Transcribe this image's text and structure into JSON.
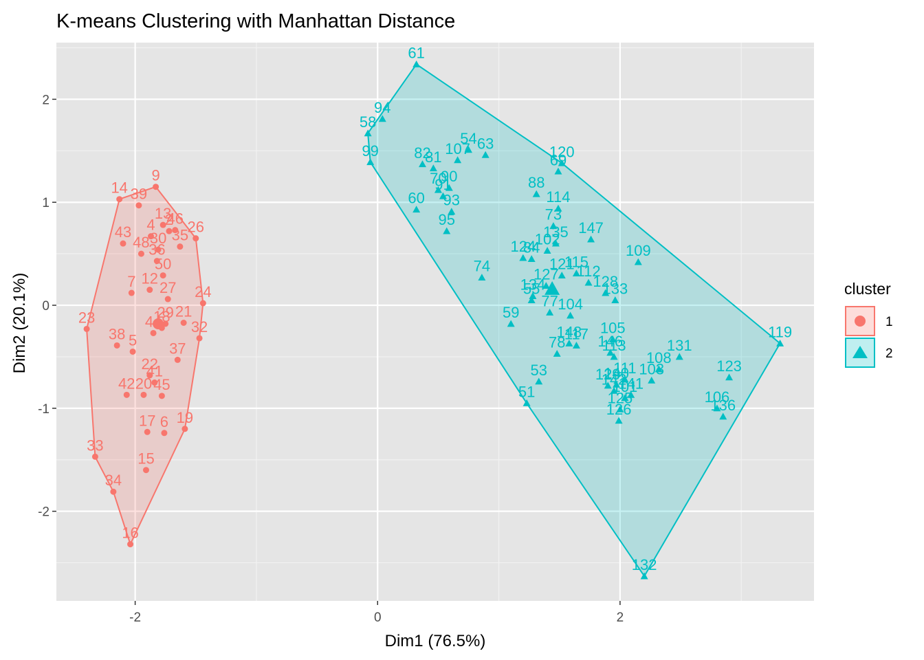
{
  "chart_data": {
    "type": "scatter",
    "title": "K-means Clustering with Manhattan Distance",
    "xlabel": "Dim1 (76.5%)",
    "ylabel": "Dim2 (20.1%)",
    "xlim": [
      -2.65,
      3.6
    ],
    "ylim": [
      -2.87,
      2.55
    ],
    "x_ticks": [
      -2,
      0,
      2
    ],
    "y_ticks": [
      -2,
      -1,
      0,
      1,
      2
    ],
    "grid": true,
    "legend_position": "right",
    "legend_title": "cluster",
    "colors": {
      "1": "#f8766d",
      "2": "#00bfc4"
    },
    "series": [
      {
        "name": "1",
        "marker": "circle",
        "points": [
          {
            "id": "9",
            "x": -1.83,
            "y": 1.15
          },
          {
            "id": "14",
            "x": -2.13,
            "y": 1.03
          },
          {
            "id": "39",
            "x": -1.97,
            "y": 0.97
          },
          {
            "id": "13",
            "x": -1.77,
            "y": 0.78
          },
          {
            "id": "46",
            "x": -1.67,
            "y": 0.73
          },
          {
            "id": "26",
            "x": -1.5,
            "y": 0.65
          },
          {
            "id": "4",
            "x": -1.87,
            "y": 0.67
          },
          {
            "id": "43",
            "x": -2.1,
            "y": 0.6
          },
          {
            "id": "48",
            "x": -1.95,
            "y": 0.5
          },
          {
            "id": "2",
            "x": -1.72,
            "y": 0.72
          },
          {
            "id": "35",
            "x": -1.63,
            "y": 0.57
          },
          {
            "id": "30",
            "x": -1.81,
            "y": 0.54
          },
          {
            "id": "36",
            "x": -1.82,
            "y": 0.43
          },
          {
            "id": "7",
            "x": -2.03,
            "y": 0.12
          },
          {
            "id": "12",
            "x": -1.88,
            "y": 0.15
          },
          {
            "id": "50",
            "x": -1.77,
            "y": 0.29
          },
          {
            "id": "24",
            "x": -1.44,
            "y": 0.02
          },
          {
            "id": "27",
            "x": -1.73,
            "y": 0.06
          },
          {
            "id": "23",
            "x": -2.4,
            "y": -0.23
          },
          {
            "id": "38",
            "x": -2.15,
            "y": -0.39
          },
          {
            "id": "5",
            "x": -2.02,
            "y": -0.45
          },
          {
            "id": "44",
            "x": -1.85,
            "y": -0.27
          },
          {
            "id": "18",
            "x": -1.78,
            "y": -0.22
          },
          {
            "id": "29",
            "x": -1.75,
            "y": -0.18
          },
          {
            "id": "21",
            "x": -1.6,
            "y": -0.17
          },
          {
            "id": "32",
            "x": -1.47,
            "y": -0.32
          },
          {
            "id": "37",
            "x": -1.65,
            "y": -0.53
          },
          {
            "id": "22",
            "x": -1.88,
            "y": -0.68
          },
          {
            "id": "42",
            "x": -2.07,
            "y": -0.87
          },
          {
            "id": "20",
            "x": -1.93,
            "y": -0.87
          },
          {
            "id": "45",
            "x": -1.78,
            "y": -0.88
          },
          {
            "id": "41",
            "x": -1.84,
            "y": -0.75
          },
          {
            "id": "17",
            "x": -1.9,
            "y": -1.23
          },
          {
            "id": "6",
            "x": -1.76,
            "y": -1.24
          },
          {
            "id": "19",
            "x": -1.59,
            "y": -1.2
          },
          {
            "id": "33",
            "x": -2.33,
            "y": -1.47
          },
          {
            "id": "15",
            "x": -1.91,
            "y": -1.6
          },
          {
            "id": "34",
            "x": -2.18,
            "y": -1.81
          },
          {
            "id": "16",
            "x": -2.04,
            "y": -2.32
          }
        ],
        "hull_order": [
          "9",
          "26",
          "24",
          "32",
          "19",
          "16",
          "34",
          "33",
          "23",
          "14"
        ]
      },
      {
        "name": "2",
        "marker": "triangle",
        "points": [
          {
            "id": "61",
            "x": 0.32,
            "y": 2.34
          },
          {
            "id": "94",
            "x": 0.04,
            "y": 1.81
          },
          {
            "id": "58",
            "x": -0.08,
            "y": 1.67
          },
          {
            "id": "99",
            "x": -0.06,
            "y": 1.39
          },
          {
            "id": "82",
            "x": 0.37,
            "y": 1.37
          },
          {
            "id": "81",
            "x": 0.46,
            "y": 1.33
          },
          {
            "id": "107",
            "x": 0.66,
            "y": 1.41
          },
          {
            "id": "54",
            "x": 0.75,
            "y": 1.51
          },
          {
            "id": "63",
            "x": 0.89,
            "y": 1.46
          },
          {
            "id": "70",
            "x": 0.5,
            "y": 1.12
          },
          {
            "id": "90",
            "x": 0.59,
            "y": 1.14
          },
          {
            "id": "91",
            "x": 0.54,
            "y": 1.06
          },
          {
            "id": "60",
            "x": 0.32,
            "y": 0.93
          },
          {
            "id": "93",
            "x": 0.61,
            "y": 0.91
          },
          {
            "id": "95",
            "x": 0.57,
            "y": 0.72
          },
          {
            "id": "120",
            "x": 1.52,
            "y": 1.38
          },
          {
            "id": "69",
            "x": 1.49,
            "y": 1.3
          },
          {
            "id": "88",
            "x": 1.31,
            "y": 1.08
          },
          {
            "id": "114",
            "x": 1.49,
            "y": 0.94
          },
          {
            "id": "73",
            "x": 1.45,
            "y": 0.77
          },
          {
            "id": "147",
            "x": 1.76,
            "y": 0.64
          },
          {
            "id": "109",
            "x": 2.15,
            "y": 0.42
          },
          {
            "id": "124",
            "x": 1.2,
            "y": 0.46
          },
          {
            "id": "84",
            "x": 1.27,
            "y": 0.45
          },
          {
            "id": "102",
            "x": 1.4,
            "y": 0.53
          },
          {
            "id": "135",
            "x": 1.47,
            "y": 0.6
          },
          {
            "id": "74",
            "x": 0.86,
            "y": 0.27
          },
          {
            "id": "121",
            "x": 1.52,
            "y": 0.29
          },
          {
            "id": "115",
            "x": 1.64,
            "y": 0.31
          },
          {
            "id": "112",
            "x": 1.74,
            "y": 0.22
          },
          {
            "id": "127",
            "x": 1.39,
            "y": 0.19
          },
          {
            "id": "134",
            "x": 1.28,
            "y": 0.09
          },
          {
            "id": "55",
            "x": 1.27,
            "y": 0.05
          },
          {
            "id": "128",
            "x": 1.88,
            "y": 0.12
          },
          {
            "id": "133",
            "x": 1.96,
            "y": 0.05
          },
          {
            "id": "77",
            "x": 1.42,
            "y": -0.07
          },
          {
            "id": "104",
            "x": 1.59,
            "y": -0.1
          },
          {
            "id": "59",
            "x": 1.1,
            "y": -0.18
          },
          {
            "id": "117",
            "x": 1.64,
            "y": -0.39
          },
          {
            "id": "148",
            "x": 1.58,
            "y": -0.37
          },
          {
            "id": "78",
            "x": 1.48,
            "y": -0.47
          },
          {
            "id": "105",
            "x": 1.94,
            "y": -0.33
          },
          {
            "id": "146",
            "x": 1.92,
            "y": -0.46
          },
          {
            "id": "113",
            "x": 1.95,
            "y": -0.5
          },
          {
            "id": "131",
            "x": 2.49,
            "y": -0.5
          },
          {
            "id": "108",
            "x": 2.32,
            "y": -0.62
          },
          {
            "id": "103",
            "x": 2.26,
            "y": -0.73
          },
          {
            "id": "123",
            "x": 2.9,
            "y": -0.7
          },
          {
            "id": "53",
            "x": 1.33,
            "y": -0.74
          },
          {
            "id": "51",
            "x": 1.23,
            "y": -0.95
          },
          {
            "id": "111",
            "x": 2.04,
            "y": -0.72
          },
          {
            "id": "140",
            "x": 1.97,
            "y": -0.77
          },
          {
            "id": "129",
            "x": 1.9,
            "y": -0.78
          },
          {
            "id": "142",
            "x": 1.95,
            "y": -0.83
          },
          {
            "id": "141",
            "x": 2.09,
            "y": -0.87
          },
          {
            "id": "101",
            "x": 2.04,
            "y": -0.9
          },
          {
            "id": "125",
            "x": 2.0,
            "y": -1.01
          },
          {
            "id": "126",
            "x": 1.99,
            "y": -1.12
          },
          {
            "id": "106",
            "x": 2.8,
            "y": -1.0
          },
          {
            "id": "136",
            "x": 2.85,
            "y": -1.08
          },
          {
            "id": "119",
            "x": 3.32,
            "y": -0.37
          },
          {
            "id": "132",
            "x": 2.2,
            "y": -2.63
          }
        ],
        "hull_order": [
          "61",
          "120",
          "119",
          "132",
          "51",
          "99",
          "58"
        ]
      }
    ],
    "centroids": [
      {
        "cluster": "1",
        "x": -1.81,
        "y": -0.18
      },
      {
        "cluster": "2",
        "x": 1.44,
        "y": 0.16
      }
    ]
  }
}
